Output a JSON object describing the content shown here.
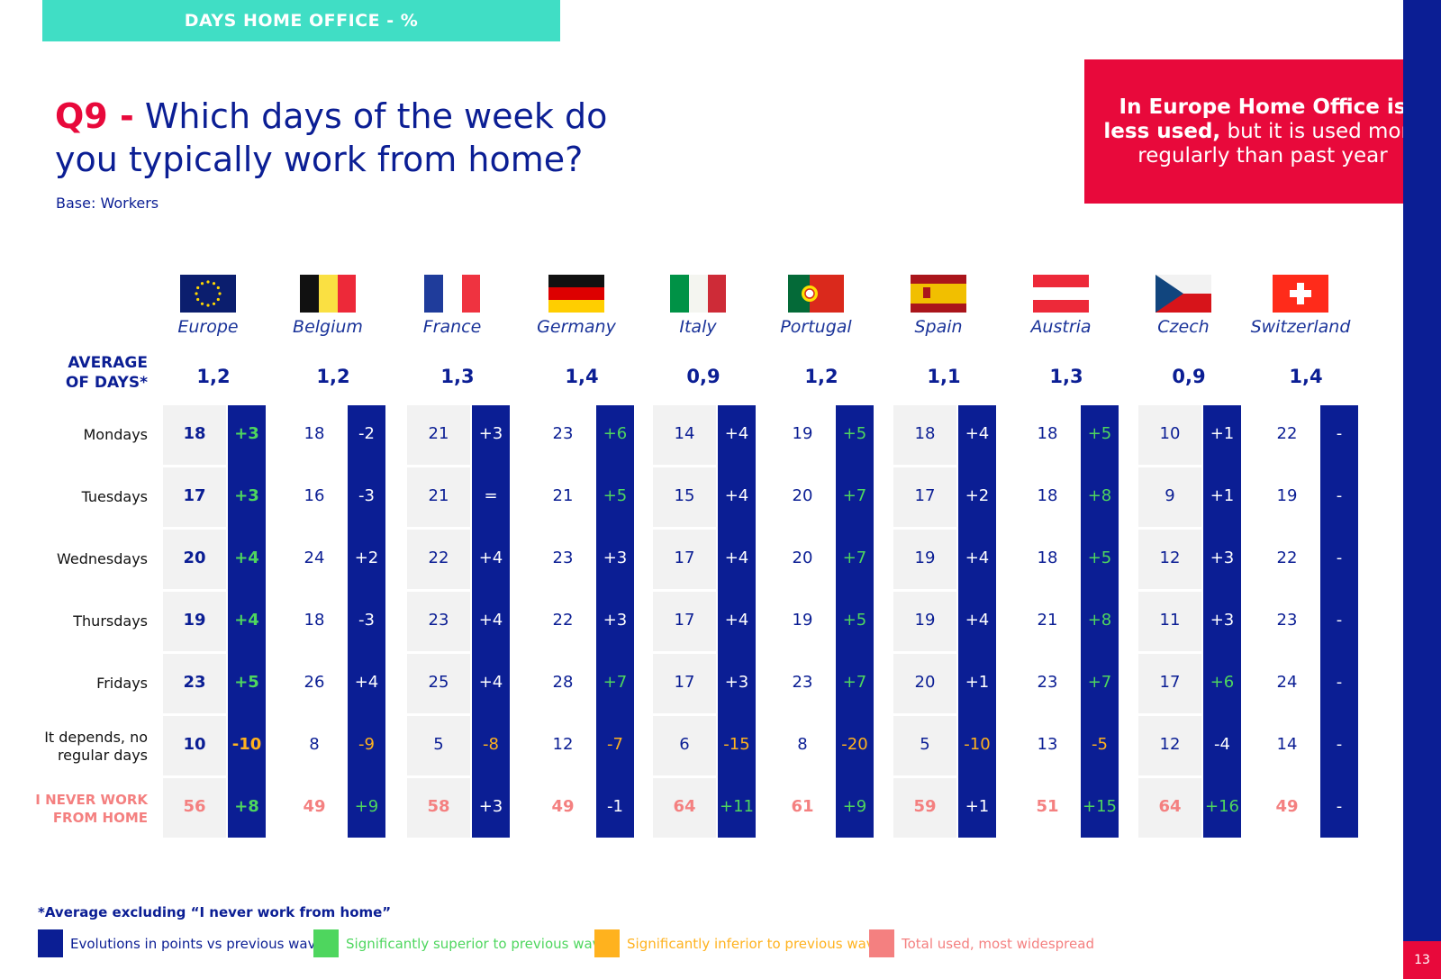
{
  "section_tag": "DAYS HOME OFFICE - %",
  "title": {
    "q": "Q9 -",
    "text": "Which days of the week do you typically work from home?"
  },
  "base": "Base: Workers",
  "callout": {
    "bold": "In Europe Home Office is less used,",
    "light": "but it is used more regularly than past year"
  },
  "page_number": "13",
  "average_label": "AVERAGE OF DAYS*",
  "footnote": "*Average excluding “I never work from home”",
  "legend": [
    {
      "label": "Evolutions in points vs previous wave",
      "color": "#0B1E94",
      "text_color": "#0B1E94"
    },
    {
      "label": "Significantly superior to previous wave",
      "color": "#4ED65E",
      "text_color": "#4ED65E"
    },
    {
      "label": "Significantly inferior to previous wave",
      "color": "#FFB21E",
      "text_color": "#FFB21E"
    },
    {
      "label": "Total used, most widespread",
      "color": "#F48080",
      "text_color": "#F48080"
    }
  ],
  "chart_data": {
    "type": "table",
    "title": "Which days of the week do you typically work from home?",
    "rows": [
      "Mondays",
      "Tuesdays",
      "Wednesdays",
      "Thursdays",
      "Fridays",
      "It depends, no regular days",
      "I NEVER WORK FROM HOME"
    ],
    "countries": [
      {
        "name": "Europe",
        "flag": "eu-flag",
        "average": "1,2",
        "values": [
          "18",
          "17",
          "20",
          "19",
          "23",
          "10",
          "56"
        ],
        "evolutions": [
          "+3",
          "+3",
          "+4",
          "+4",
          "+5",
          "-10",
          "+8"
        ],
        "evo_colors": [
          "green",
          "green",
          "green",
          "green",
          "green",
          "orange",
          "green"
        ]
      },
      {
        "name": "Belgium",
        "flag": "belgium-flag",
        "average": "1,2",
        "values": [
          "18",
          "16",
          "24",
          "18",
          "26",
          "8",
          "49"
        ],
        "evolutions": [
          "-2",
          "-3",
          "+2",
          "-3",
          "+4",
          "-9",
          "+9"
        ],
        "evo_colors": [
          "white",
          "white",
          "white",
          "white",
          "white",
          "orange",
          "green"
        ]
      },
      {
        "name": "France",
        "flag": "france-flag",
        "average": "1,3",
        "values": [
          "21",
          "21",
          "22",
          "23",
          "25",
          "5",
          "58"
        ],
        "evolutions": [
          "+3",
          "=",
          "+4",
          "+4",
          "+4",
          "-8",
          "+3"
        ],
        "evo_colors": [
          "white",
          "white",
          "white",
          "white",
          "white",
          "orange",
          "white"
        ]
      },
      {
        "name": "Germany",
        "flag": "germany-flag",
        "average": "1,4",
        "values": [
          "23",
          "21",
          "23",
          "22",
          "28",
          "12",
          "49"
        ],
        "evolutions": [
          "+6",
          "+5",
          "+3",
          "+3",
          "+7",
          "-7",
          "-1"
        ],
        "evo_colors": [
          "green",
          "green",
          "white",
          "white",
          "green",
          "orange",
          "white"
        ]
      },
      {
        "name": "Italy",
        "flag": "italy-flag",
        "average": "0,9",
        "values": [
          "14",
          "15",
          "17",
          "17",
          "17",
          "6",
          "64"
        ],
        "evolutions": [
          "+4",
          "+4",
          "+4",
          "+4",
          "+3",
          "-15",
          "+11"
        ],
        "evo_colors": [
          "white",
          "white",
          "white",
          "white",
          "white",
          "orange",
          "green"
        ]
      },
      {
        "name": "Portugal",
        "flag": "portugal-flag",
        "average": "1,2",
        "values": [
          "19",
          "20",
          "20",
          "19",
          "23",
          "8",
          "61"
        ],
        "evolutions": [
          "+5",
          "+7",
          "+7",
          "+5",
          "+7",
          "-20",
          "+9"
        ],
        "evo_colors": [
          "green",
          "green",
          "green",
          "green",
          "green",
          "orange",
          "green"
        ]
      },
      {
        "name": "Spain",
        "flag": "spain-flag",
        "average": "1,1",
        "values": [
          "18",
          "17",
          "19",
          "19",
          "20",
          "5",
          "59"
        ],
        "evolutions": [
          "+4",
          "+2",
          "+4",
          "+4",
          "+1",
          "-10",
          "+1"
        ],
        "evo_colors": [
          "white",
          "white",
          "white",
          "white",
          "white",
          "orange",
          "white"
        ]
      },
      {
        "name": "Austria",
        "flag": "austria-flag",
        "average": "1,3",
        "values": [
          "18",
          "18",
          "18",
          "21",
          "23",
          "13",
          "51"
        ],
        "evolutions": [
          "+5",
          "+8",
          "+5",
          "+8",
          "+7",
          "-5",
          "+15"
        ],
        "evo_colors": [
          "green",
          "green",
          "green",
          "green",
          "green",
          "orange",
          "green"
        ]
      },
      {
        "name": "Czech",
        "flag": "czech-flag",
        "average": "0,9",
        "values": [
          "10",
          "9",
          "12",
          "11",
          "17",
          "12",
          "64"
        ],
        "evolutions": [
          "+1",
          "+1",
          "+3",
          "+3",
          "+6",
          "-4",
          "+16"
        ],
        "evo_colors": [
          "white",
          "white",
          "white",
          "white",
          "green",
          "white",
          "green"
        ]
      },
      {
        "name": "Switzerland",
        "flag": "switzerland-flag",
        "average": "1,4",
        "values": [
          "22",
          "19",
          "22",
          "23",
          "24",
          "14",
          "49"
        ],
        "evolutions": [
          "-",
          "-",
          "-",
          "-",
          "-",
          "-",
          "-"
        ],
        "evo_colors": [
          "white",
          "white",
          "white",
          "white",
          "white",
          "white",
          "white"
        ]
      }
    ]
  }
}
